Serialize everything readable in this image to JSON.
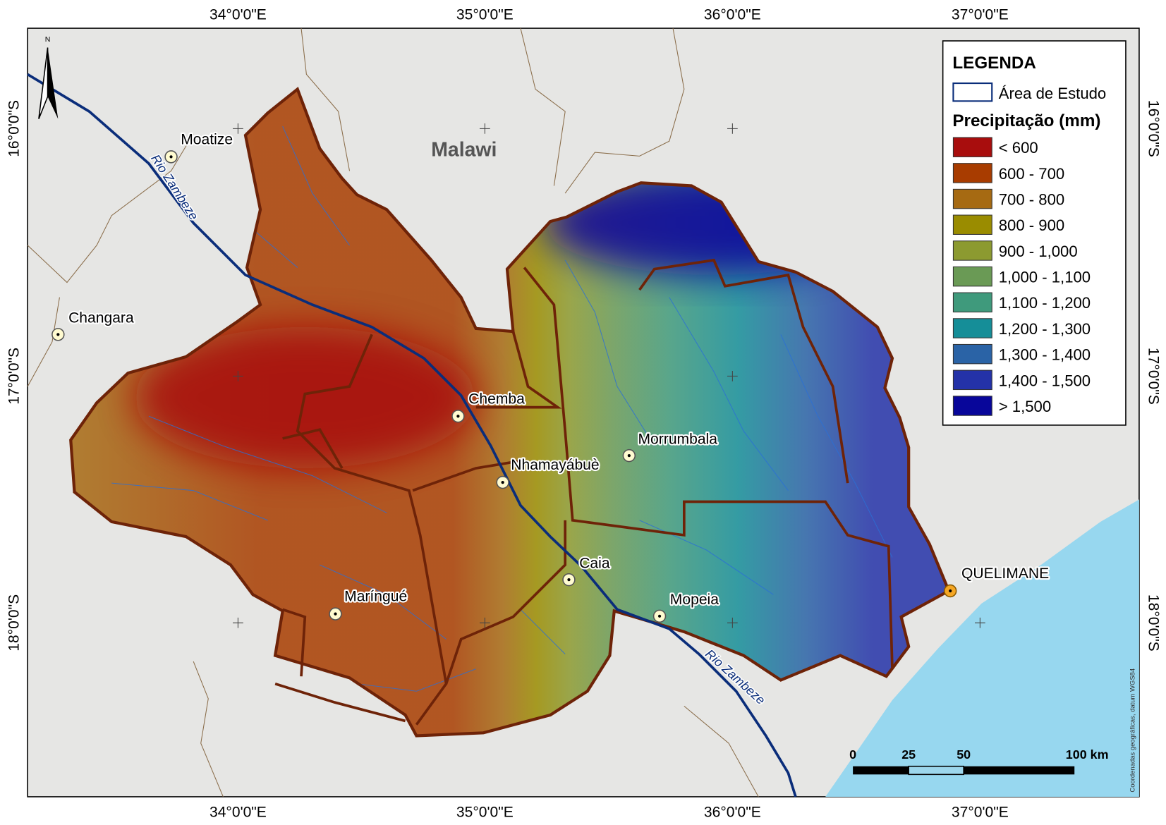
{
  "map": {
    "top_labels": [
      "34°0'0\"E",
      "35°0'0\"E",
      "36°0'0\"E",
      "37°0'0\"E"
    ],
    "bottom_labels": [
      "34°0'0\"E",
      "35°0'0\"E",
      "36°0'0\"E",
      "37°0'0\"E"
    ],
    "left_labels": [
      "16°0'0\"S",
      "17°0'0\"S",
      "18°0'0\"S"
    ],
    "right_labels": [
      "16°0'0\"S",
      "17°0'0\"S",
      "18°0'0\"S"
    ],
    "country": "Malawi",
    "rivers": [
      "Rio Zambeze",
      "Rio Zambeze"
    ],
    "towns": [
      "Moatize",
      "Changara",
      "Chemba",
      "Nhamayábuè",
      "Morrumbala",
      "Caia",
      "Maríngué",
      "Mopeia",
      "QUELIMANE"
    ],
    "north": "N",
    "credit": "Coordenadas geográficas, datum WGS84"
  },
  "legend": {
    "title": "LEGENDA",
    "study_area": "Área de Estudo",
    "subtitle": "Precipitação (mm)",
    "items": [
      {
        "label": "< 600",
        "color": "#a80d0d"
      },
      {
        "label": "600 - 700",
        "color": "#a83c00"
      },
      {
        "label": "700 - 800",
        "color": "#a66a12"
      },
      {
        "label": "800 - 900",
        "color": "#9a8c00"
      },
      {
        "label": "900 - 1,000",
        "color": "#8c9a30"
      },
      {
        "label": "1,000 - 1,100",
        "color": "#6a9a55"
      },
      {
        "label": "1,100 - 1,200",
        "color": "#3f9a7c"
      },
      {
        "label": "1,200 - 1,300",
        "color": "#158e98"
      },
      {
        "label": "1,300 - 1,400",
        "color": "#2a63a6"
      },
      {
        "label": "1,400 - 1,500",
        "color": "#2432a8"
      },
      {
        "label": "> 1,500",
        "color": "#08069a"
      }
    ]
  },
  "scale_bar": {
    "labels": [
      "0",
      "25",
      "50",
      "100 km"
    ]
  }
}
